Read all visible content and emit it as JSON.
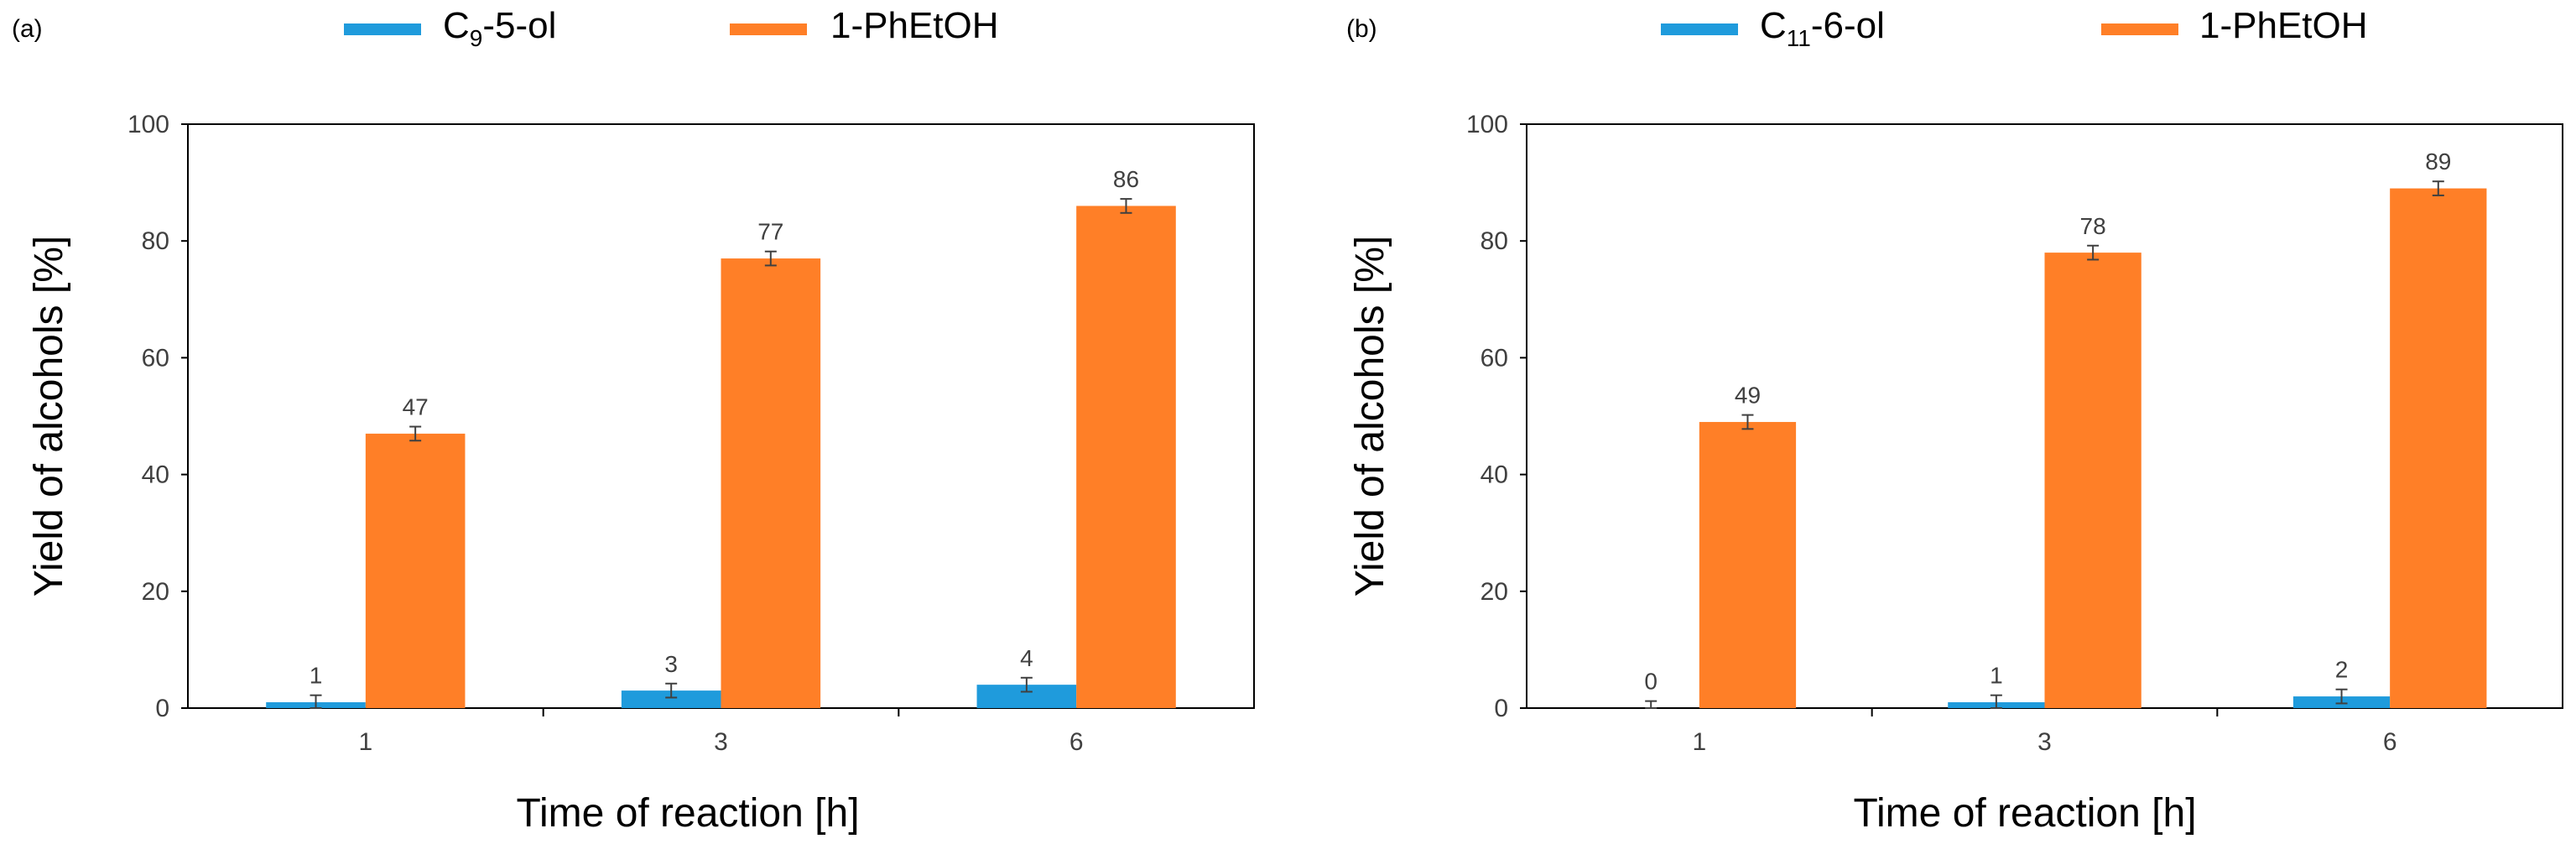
{
  "chart_data": [
    {
      "panel_label": "(a)",
      "type": "bar",
      "categories": [
        "1",
        "3",
        "6"
      ],
      "series": [
        {
          "name": "C",
          "name_sub": "9",
          "name_suffix": "-5-ol",
          "color": "#1f9bdc",
          "values": [
            1,
            3,
            4
          ],
          "errors": [
            1.2,
            1.2,
            1.2
          ]
        },
        {
          "name": "1-PhEtOH",
          "name_sub": "",
          "name_suffix": "",
          "color": "#ff7f27",
          "values": [
            47,
            77,
            86
          ],
          "errors": [
            1.2,
            1.2,
            1.2
          ]
        }
      ],
      "data_labels": [
        [
          "1",
          "3",
          "4"
        ],
        [
          "47",
          "77",
          "86"
        ]
      ],
      "xlabel": "Time of reaction [h]",
      "ylabel": "Yield of alcohols [%]",
      "ylim": [
        0,
        100
      ],
      "yticks": [
        "0",
        "20",
        "40",
        "60",
        "80",
        "100"
      ],
      "legend": "top"
    },
    {
      "panel_label": "(b)",
      "type": "bar",
      "categories": [
        "1",
        "3",
        "6"
      ],
      "series": [
        {
          "name": "C",
          "name_sub": "11",
          "name_suffix": "-6-ol",
          "color": "#1f9bdc",
          "values": [
            0,
            1,
            2
          ],
          "errors": [
            1.2,
            1.2,
            1.2
          ]
        },
        {
          "name": "1-PhEtOH",
          "name_sub": "",
          "name_suffix": "",
          "color": "#ff7f27",
          "values": [
            49,
            78,
            89
          ],
          "errors": [
            1.2,
            1.2,
            1.2
          ]
        }
      ],
      "data_labels": [
        [
          "0",
          "1",
          "2"
        ],
        [
          "49",
          "78",
          "89"
        ]
      ],
      "xlabel": "Time of reaction [h]",
      "ylabel": "Yield of alcohols [%]",
      "ylim": [
        0,
        100
      ],
      "yticks": [
        "0",
        "20",
        "40",
        "60",
        "80",
        "100"
      ],
      "legend": "top"
    }
  ]
}
